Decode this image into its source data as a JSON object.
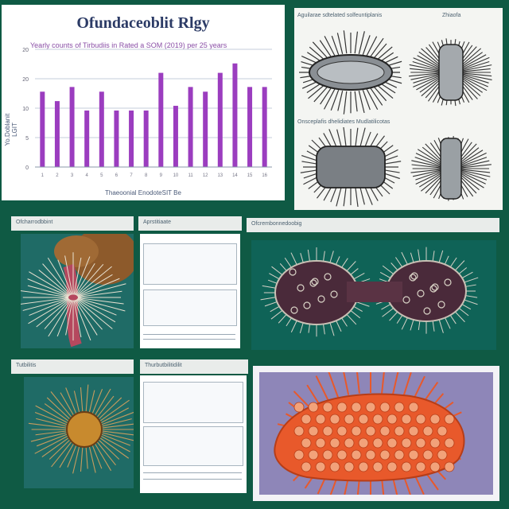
{
  "chart_data": {
    "type": "bar",
    "title": "Ofundaceoblit Rlgy",
    "subtitle": "Yearly counts of Tirbudiis in Rated a SOM (2019) per 25 years",
    "xlabel": "Thaeoonial EnodoteSIT Be",
    "ylabel": "Yo.Doblanit LGIT",
    "ylim": [
      0,
      25
    ],
    "ytick_labels": [
      "20",
      "20",
      "10",
      "5",
      "0"
    ],
    "categories": [
      "1",
      "2",
      "3",
      "4",
      "5",
      "6",
      "7",
      "8",
      "9",
      "10",
      "11",
      "12",
      "13",
      "14",
      "15",
      "16"
    ],
    "values": [
      16,
      14,
      17,
      12,
      16,
      12,
      12,
      12,
      20,
      13,
      17,
      16,
      20,
      22,
      17,
      17
    ],
    "bar_color": "#9b3dbf",
    "grid": true
  },
  "top_right": {
    "heading_1": "Aguilarae sdtelated solfeuntiplanis",
    "heading_1b": "Zhiaofa",
    "heading_2": "Onsceplafis dhelidiates Mudlatilicotas"
  },
  "mid_row": {
    "header_1": "Ofcharrodbbint",
    "header_2": "Aprstitiaate",
    "header_3": "Ofcrembonnedoobig"
  },
  "bottom_row": {
    "header_1": "Tutbilitis",
    "header_2": "Thurbutbilitidilit"
  },
  "images": {
    "colors": {
      "teal": "#1f6b66",
      "dark_teal": "#0d4a44",
      "lavender": "#8e86b8",
      "orange": "#e8592b"
    }
  }
}
